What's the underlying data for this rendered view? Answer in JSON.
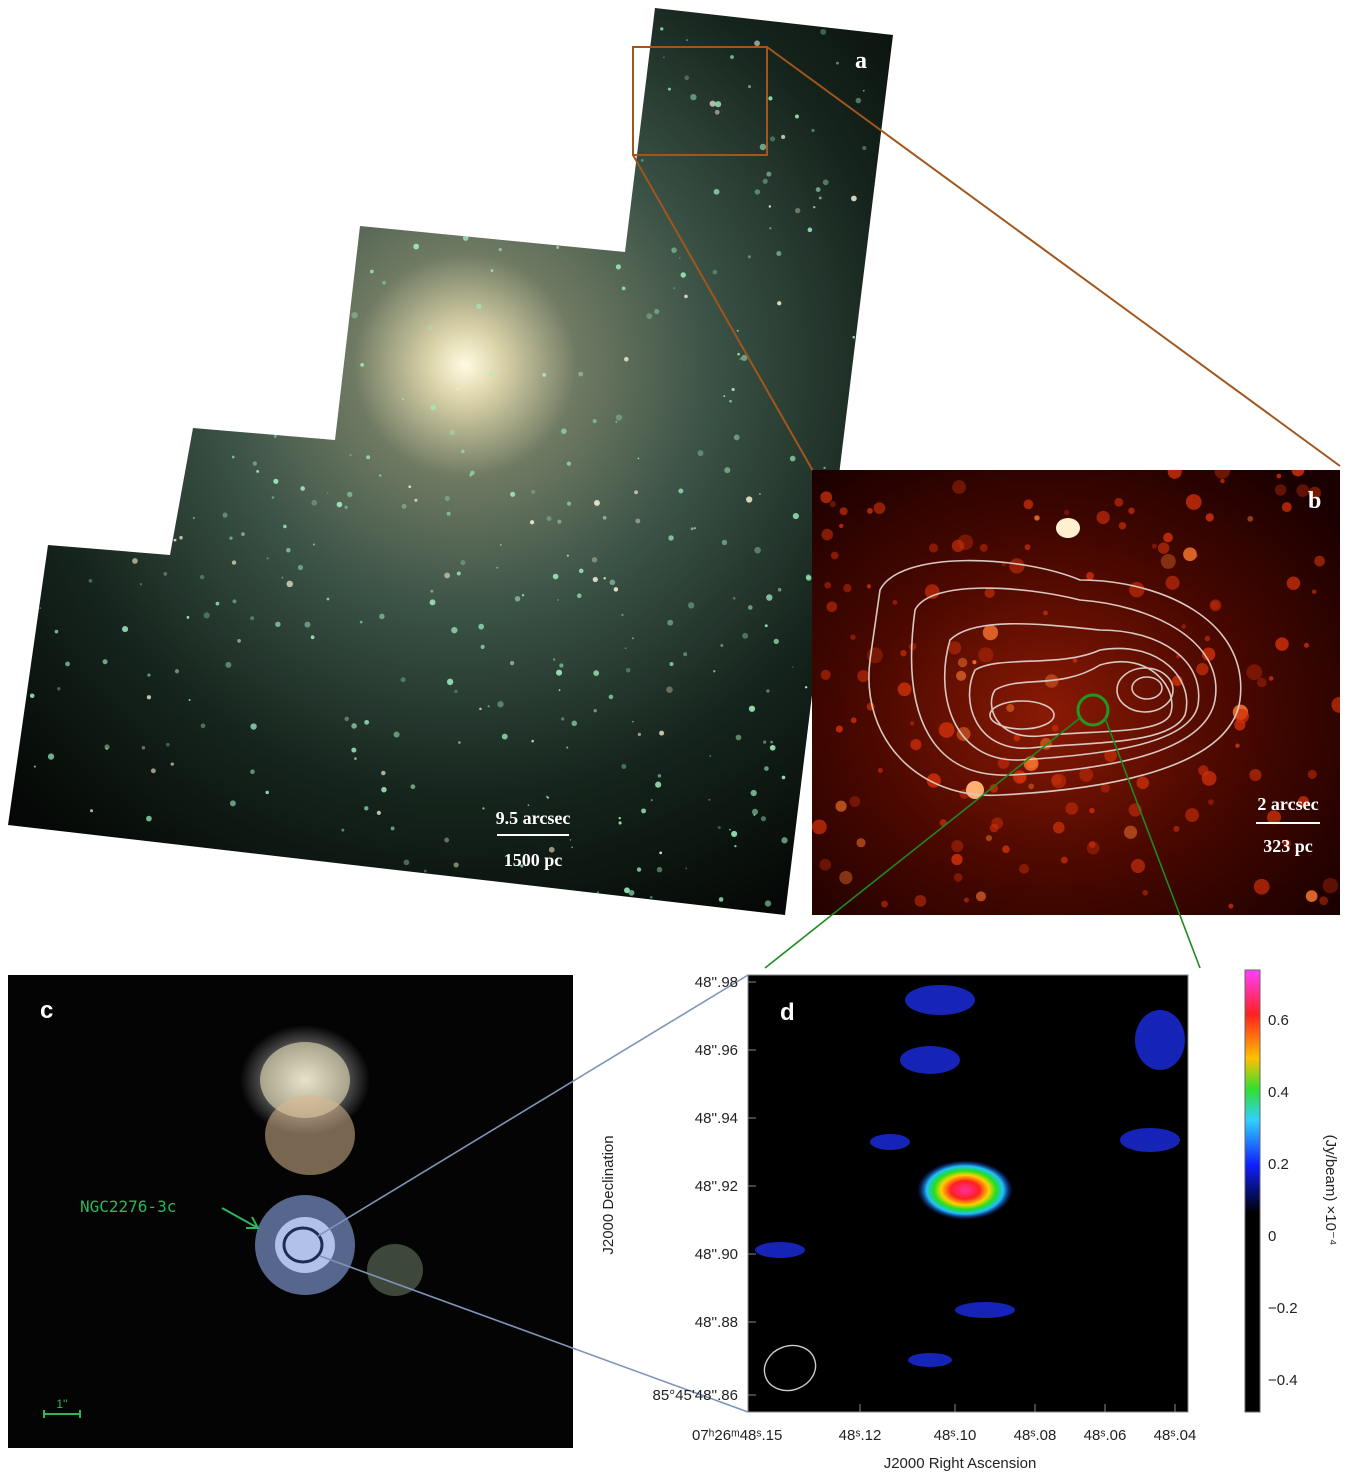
{
  "panels": {
    "a": {
      "label": "a",
      "scale_bar": {
        "top": "9.5 arcsec",
        "bottom": "1500 pc"
      }
    },
    "b": {
      "label": "b",
      "scale_bar": {
        "top": "2 arcsec",
        "bottom": "323 pc"
      }
    },
    "c": {
      "label": "c",
      "source_label": "NGC2276-3c",
      "scale_bar": "1''"
    },
    "d": {
      "label": "d",
      "y_axis": {
        "title": "J2000 Declination",
        "ticks": [
          "48''.98",
          "48''.96",
          "48''.94",
          "48''.92",
          "48''.90",
          "48''.88",
          "85°45'48''.86"
        ]
      },
      "x_axis": {
        "title": "J2000 Right Ascension",
        "ticks": [
          "07ʰ26ᵐ48ˢ.15",
          "48ˢ.12",
          "48ˢ.10",
          "48ˢ.08",
          "48ˢ.06",
          "48ˢ.04"
        ]
      },
      "colorbar": {
        "title": "(Jy/beam)",
        "multiplier": "×10⁻⁴",
        "ticks": [
          "0.6",
          "0.4",
          "0.2",
          "0",
          "−0.2",
          "−0.4"
        ]
      }
    }
  }
}
